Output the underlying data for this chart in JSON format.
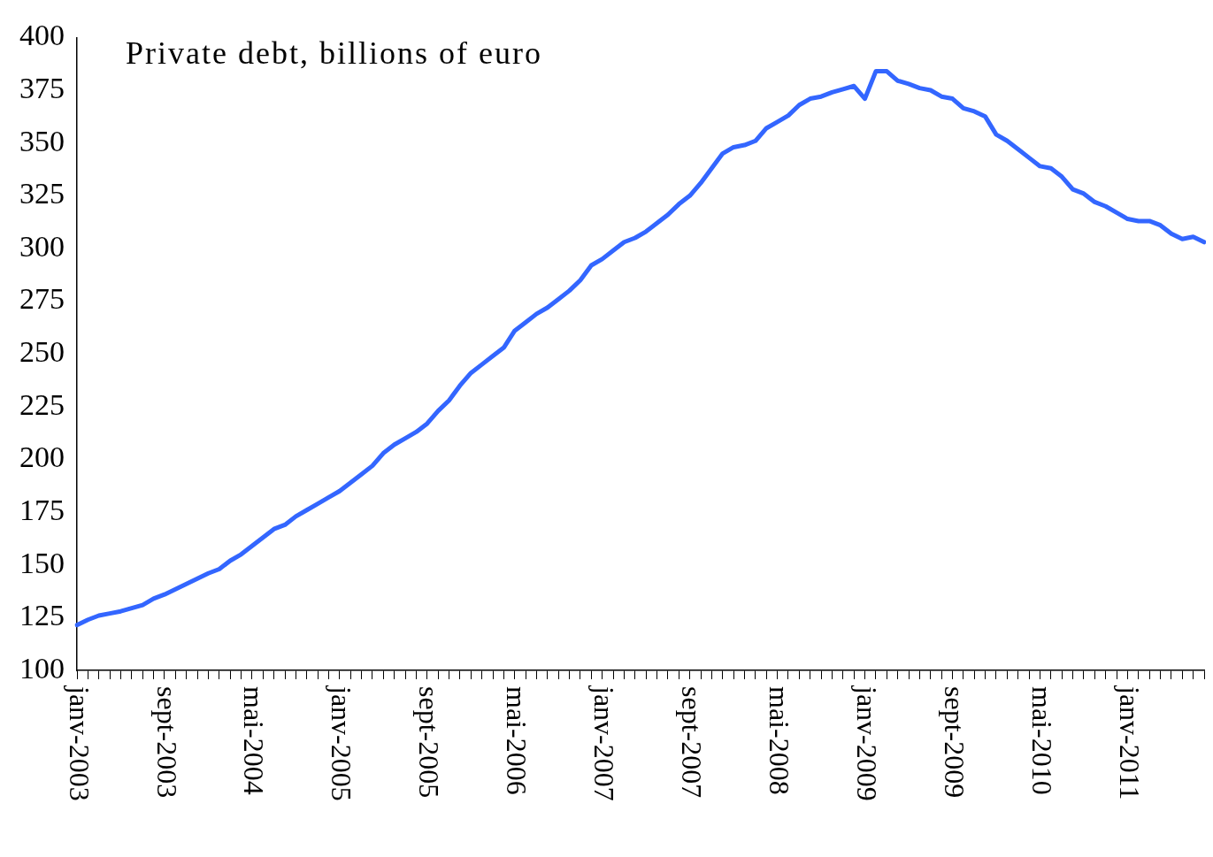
{
  "chart_data": {
    "type": "line",
    "title": "Private debt, billions of euro",
    "categories": [
      "janv-2003",
      null,
      null,
      null,
      null,
      null,
      null,
      null,
      "sept-2003",
      null,
      null,
      null,
      null,
      null,
      null,
      null,
      "mai-2004",
      null,
      null,
      null,
      null,
      null,
      null,
      null,
      "janv-2005",
      null,
      null,
      null,
      null,
      null,
      null,
      null,
      "sept-2005",
      null,
      null,
      null,
      null,
      null,
      null,
      null,
      "mai-2006",
      null,
      null,
      null,
      null,
      null,
      null,
      null,
      "janv-2007",
      null,
      null,
      null,
      null,
      null,
      null,
      null,
      "sept-2007",
      null,
      null,
      null,
      null,
      null,
      null,
      null,
      "mai-2008",
      null,
      null,
      null,
      null,
      null,
      null,
      null,
      "janv-2009",
      null,
      null,
      null,
      null,
      null,
      null,
      null,
      "sept-2009",
      null,
      null,
      null,
      null,
      null,
      null,
      null,
      "mai-2010",
      null,
      null,
      null,
      null,
      null,
      null,
      null,
      "janv-2011",
      null,
      null,
      null,
      null,
      null,
      null,
      null
    ],
    "series": [
      {
        "color": "#3366ff",
        "values": [
          121.5,
          124,
          126,
          127,
          128,
          129.5,
          131,
          134,
          136,
          138.5,
          141,
          143.5,
          146,
          148,
          152,
          155,
          159,
          163,
          167,
          169,
          173,
          176,
          179,
          182,
          185,
          189,
          193,
          197,
          203,
          207,
          210,
          213,
          217,
          223,
          228,
          235,
          241,
          245,
          249,
          253,
          261,
          265,
          269,
          272,
          276,
          280,
          285,
          292,
          295,
          299,
          303,
          305,
          308,
          312,
          316,
          321,
          325,
          331,
          338,
          345,
          348,
          349,
          351,
          357,
          360,
          363,
          368,
          371,
          372,
          374,
          375.5,
          377,
          371,
          384,
          384,
          379.5,
          378,
          376,
          375,
          372,
          371,
          366.5,
          365,
          362.5,
          354,
          351,
          347,
          343,
          339,
          338,
          334,
          328,
          326,
          322,
          320,
          317,
          314,
          313,
          313,
          311,
          307,
          304.5,
          305.5,
          303
        ]
      }
    ],
    "ylim": [
      100,
      400
    ],
    "yticks": [
      100,
      125,
      150,
      175,
      200,
      225,
      250,
      275,
      300,
      325,
      350,
      375,
      400
    ],
    "grid": false,
    "legend": false,
    "marker": "none",
    "line_style": "solid"
  }
}
